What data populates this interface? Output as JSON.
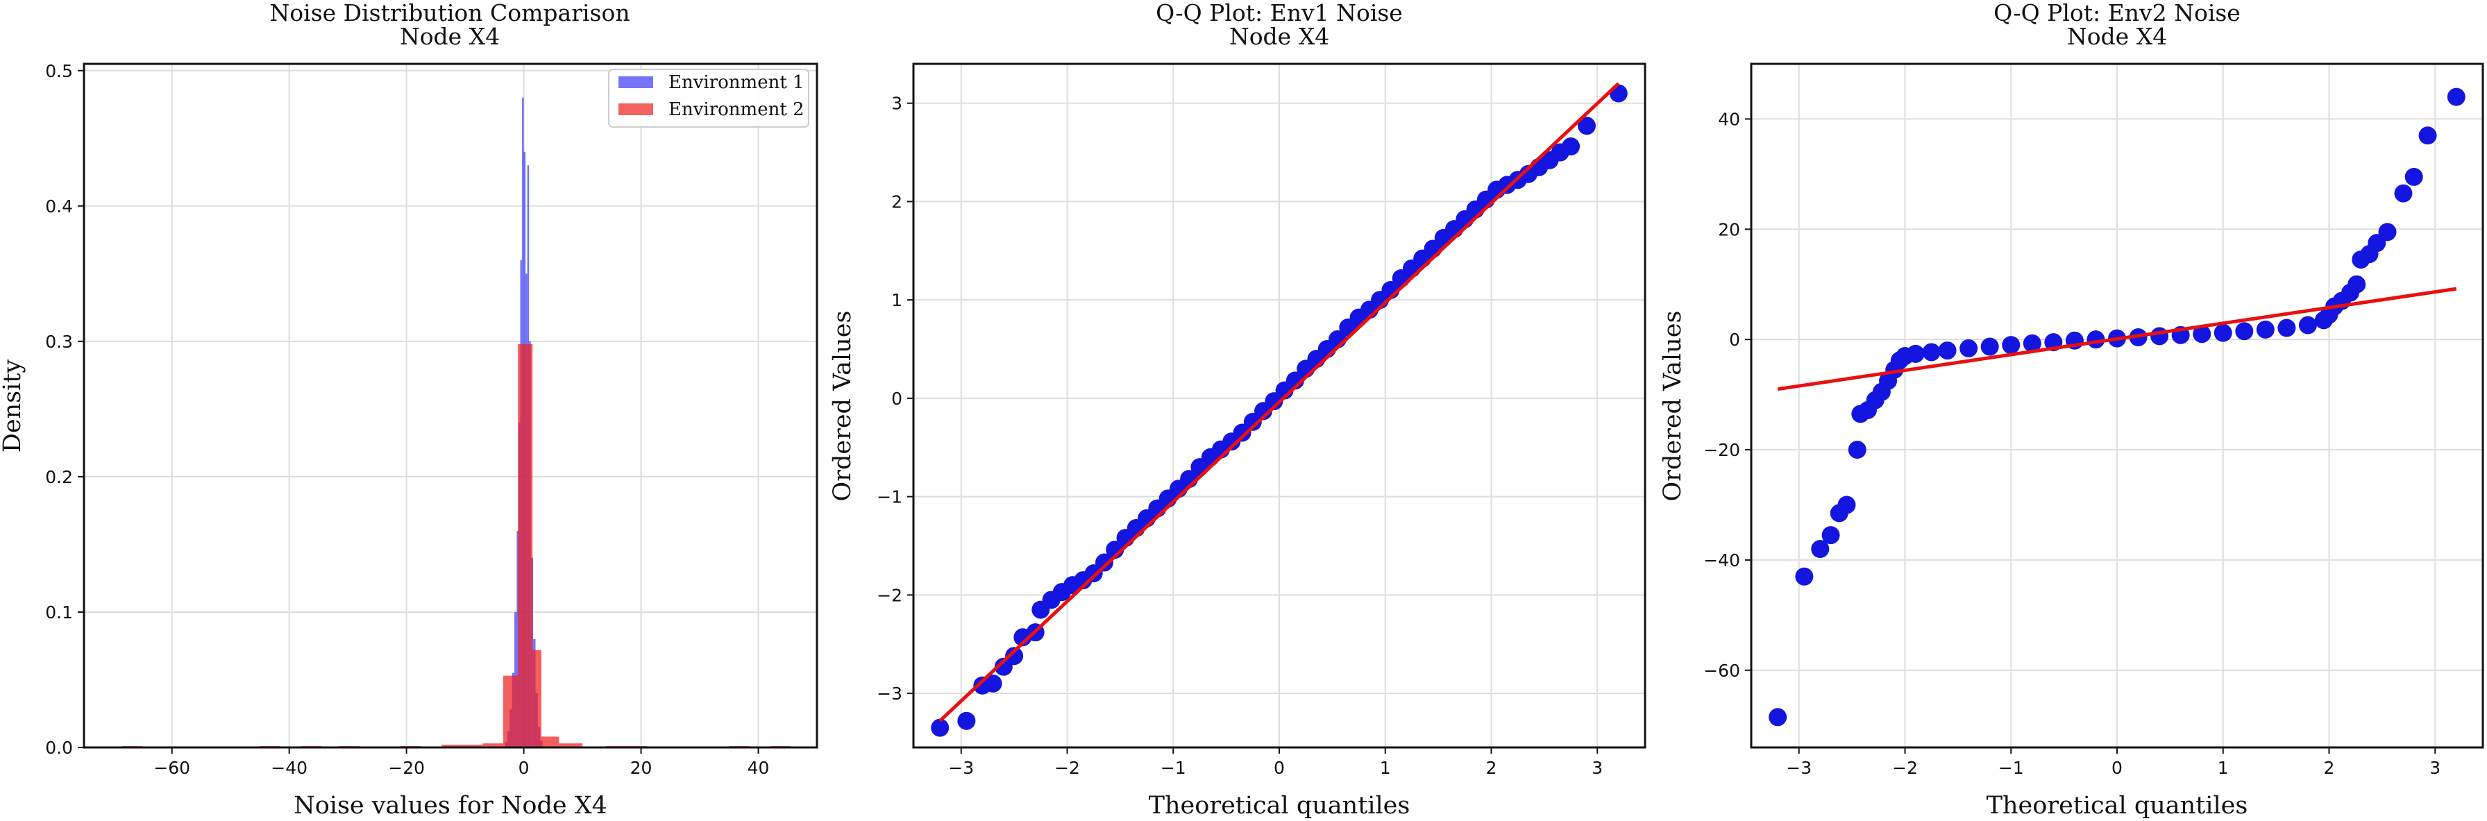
{
  "chart_data": [
    {
      "type": "histogram",
      "title": "Noise Distribution Comparison",
      "subtitle": "Node X4",
      "xlabel": "Noise values for Node X4",
      "ylabel": "Density",
      "xlim": [
        -75,
        50
      ],
      "ylim": [
        0,
        0.505
      ],
      "xticks": [
        -60,
        -40,
        -20,
        0,
        20,
        40
      ],
      "yticks": [
        0.0,
        0.1,
        0.2,
        0.3,
        0.4,
        0.5
      ],
      "xtick_labels": [
        "−60",
        "−40",
        "−20",
        "0",
        "20",
        "40"
      ],
      "ytick_labels": [
        "0.0",
        "0.1",
        "0.2",
        "0.3",
        "0.4",
        "0.5"
      ],
      "grid": true,
      "legend": "top-right",
      "series": [
        {
          "name": "Environment 1",
          "color": "#3b3bf5",
          "bins": [
            {
              "x0": -3.2,
              "x1": -2.8,
              "density": 0.004
            },
            {
              "x0": -2.8,
              "x1": -2.4,
              "density": 0.012
            },
            {
              "x0": -2.4,
              "x1": -2.0,
              "density": 0.028
            },
            {
              "x0": -2.0,
              "x1": -1.6,
              "density": 0.055
            },
            {
              "x0": -1.6,
              "x1": -1.2,
              "density": 0.1
            },
            {
              "x0": -1.2,
              "x1": -0.9,
              "density": 0.16
            },
            {
              "x0": -0.9,
              "x1": -0.6,
              "density": 0.24
            },
            {
              "x0": -0.6,
              "x1": -0.3,
              "density": 0.36
            },
            {
              "x0": -0.3,
              "x1": 0.0,
              "density": 0.48
            },
            {
              "x0": 0.0,
              "x1": 0.3,
              "density": 0.44
            },
            {
              "x0": 0.3,
              "x1": 0.6,
              "density": 0.35
            },
            {
              "x0": 0.6,
              "x1": 0.9,
              "density": 0.43
            },
            {
              "x0": 0.9,
              "x1": 1.2,
              "density": 0.3
            },
            {
              "x0": 1.2,
              "x1": 1.6,
              "density": 0.14
            },
            {
              "x0": 1.6,
              "x1": 2.0,
              "density": 0.08
            },
            {
              "x0": 2.0,
              "x1": 2.4,
              "density": 0.04
            },
            {
              "x0": 2.4,
              "x1": 2.8,
              "density": 0.015
            },
            {
              "x0": 2.8,
              "x1": 3.2,
              "density": 0.005
            }
          ]
        },
        {
          "name": "Environment 2",
          "color": "#f02020",
          "bins": [
            {
              "x0": -68.5,
              "x1": -65.0,
              "density": 0.001
            },
            {
              "x0": -45.0,
              "x1": -41.5,
              "density": 0.001
            },
            {
              "x0": -38.0,
              "x1": -34.5,
              "density": 0.001
            },
            {
              "x0": -31.5,
              "x1": -28.0,
              "density": 0.001
            },
            {
              "x0": -21.0,
              "x1": -17.5,
              "density": 0.001
            },
            {
              "x0": -14.0,
              "x1": -10.5,
              "density": 0.002
            },
            {
              "x0": -10.5,
              "x1": -7.0,
              "density": 0.002
            },
            {
              "x0": -7.0,
              "x1": -3.5,
              "density": 0.003
            },
            {
              "x0": -3.5,
              "x1": -1.0,
              "density": 0.053
            },
            {
              "x0": -1.0,
              "x1": 1.5,
              "density": 0.298
            },
            {
              "x0": 1.5,
              "x1": 3.0,
              "density": 0.072
            },
            {
              "x0": 3.0,
              "x1": 6.0,
              "density": 0.008
            },
            {
              "x0": 6.0,
              "x1": 10.0,
              "density": 0.003
            },
            {
              "x0": 14.0,
              "x1": 17.5,
              "density": 0.001
            },
            {
              "x0": 17.5,
              "x1": 21.0,
              "density": 0.001
            },
            {
              "x0": 35.0,
              "x1": 38.5,
              "density": 0.001
            },
            {
              "x0": 42.0,
              "x1": 45.5,
              "density": 0.001
            }
          ]
        }
      ]
    },
    {
      "type": "scatter",
      "title": "Q-Q Plot: Env1 Noise",
      "subtitle": "Node X4",
      "xlabel": "Theoretical quantiles",
      "ylabel": "Ordered Values",
      "xlim": [
        -3.45,
        3.45
      ],
      "ylim": [
        -3.55,
        3.4
      ],
      "xticks": [
        -3,
        -2,
        -1,
        0,
        1,
        2,
        3
      ],
      "yticks": [
        -3,
        -2,
        -1,
        0,
        1,
        2,
        3
      ],
      "xtick_labels": [
        "−3",
        "−2",
        "−1",
        "0",
        "1",
        "2",
        "3"
      ],
      "ytick_labels": [
        "−3",
        "−2",
        "−1",
        "0",
        "1",
        "2",
        "3"
      ],
      "grid": true,
      "fit_line": {
        "color": "#e81010",
        "points": [
          [
            -3.2,
            -3.28
          ],
          [
            3.2,
            3.2
          ]
        ]
      },
      "points_color": "#1515e0",
      "points": [
        [
          -3.2,
          -3.35
        ],
        [
          -2.95,
          -3.28
        ],
        [
          -2.8,
          -2.92
        ],
        [
          -2.7,
          -2.9
        ],
        [
          -2.6,
          -2.73
        ],
        [
          -2.5,
          -2.62
        ],
        [
          -2.42,
          -2.43
        ],
        [
          -2.3,
          -2.38
        ],
        [
          -2.25,
          -2.15
        ],
        [
          -2.15,
          -2.05
        ],
        [
          -2.05,
          -1.97
        ],
        [
          -1.95,
          -1.9
        ],
        [
          -1.85,
          -1.85
        ],
        [
          -1.75,
          -1.78
        ],
        [
          -1.65,
          -1.67
        ],
        [
          -1.55,
          -1.54
        ],
        [
          -1.45,
          -1.42
        ],
        [
          -1.35,
          -1.32
        ],
        [
          -1.25,
          -1.22
        ],
        [
          -1.15,
          -1.12
        ],
        [
          -1.05,
          -1.02
        ],
        [
          -0.95,
          -0.92
        ],
        [
          -0.85,
          -0.82
        ],
        [
          -0.75,
          -0.7
        ],
        [
          -0.65,
          -0.6
        ],
        [
          -0.55,
          -0.52
        ],
        [
          -0.45,
          -0.44
        ],
        [
          -0.35,
          -0.35
        ],
        [
          -0.25,
          -0.24
        ],
        [
          -0.15,
          -0.13
        ],
        [
          -0.05,
          -0.03
        ],
        [
          0.05,
          0.08
        ],
        [
          0.15,
          0.18
        ],
        [
          0.25,
          0.3
        ],
        [
          0.35,
          0.4
        ],
        [
          0.45,
          0.5
        ],
        [
          0.55,
          0.6
        ],
        [
          0.65,
          0.72
        ],
        [
          0.75,
          0.82
        ],
        [
          0.85,
          0.9
        ],
        [
          0.95,
          1.0
        ],
        [
          1.05,
          1.1
        ],
        [
          1.15,
          1.22
        ],
        [
          1.25,
          1.32
        ],
        [
          1.35,
          1.42
        ],
        [
          1.45,
          1.52
        ],
        [
          1.55,
          1.63
        ],
        [
          1.65,
          1.72
        ],
        [
          1.75,
          1.82
        ],
        [
          1.85,
          1.92
        ],
        [
          1.95,
          2.02
        ],
        [
          2.05,
          2.12
        ],
        [
          2.15,
          2.17
        ],
        [
          2.25,
          2.22
        ],
        [
          2.35,
          2.28
        ],
        [
          2.45,
          2.35
        ],
        [
          2.55,
          2.42
        ],
        [
          2.65,
          2.5
        ],
        [
          2.75,
          2.56
        ],
        [
          2.9,
          2.77
        ],
        [
          3.2,
          3.1
        ]
      ]
    },
    {
      "type": "scatter",
      "title": "Q-Q Plot: Env2 Noise",
      "subtitle": "Node X4",
      "xlabel": "Theoretical quantiles",
      "ylabel": "Ordered Values",
      "xlim": [
        -3.45,
        3.45
      ],
      "ylim": [
        -74,
        50
      ],
      "xticks": [
        -3,
        -2,
        -1,
        0,
        1,
        2,
        3
      ],
      "yticks": [
        -60,
        -40,
        -20,
        0,
        20,
        40
      ],
      "xtick_labels": [
        "−3",
        "−2",
        "−1",
        "0",
        "1",
        "2",
        "3"
      ],
      "ytick_labels": [
        "−60",
        "−40",
        "−20",
        "0",
        "20",
        "40"
      ],
      "grid": true,
      "fit_line": {
        "color": "#e81010",
        "points": [
          [
            -3.2,
            -9.0
          ],
          [
            3.2,
            9.2
          ]
        ]
      },
      "points_color": "#1515e0",
      "points": [
        [
          -3.2,
          -68.5
        ],
        [
          -2.95,
          -43.0
        ],
        [
          -2.8,
          -38.0
        ],
        [
          -2.7,
          -35.5
        ],
        [
          -2.62,
          -31.5
        ],
        [
          -2.55,
          -30.0
        ],
        [
          -2.45,
          -20.0
        ],
        [
          -2.42,
          -13.5
        ],
        [
          -2.35,
          -12.8
        ],
        [
          -2.28,
          -11.0
        ],
        [
          -2.22,
          -9.5
        ],
        [
          -2.16,
          -7.5
        ],
        [
          -2.1,
          -5.5
        ],
        [
          -2.05,
          -3.8
        ],
        [
          -2.0,
          -3.0
        ],
        [
          -1.9,
          -2.6
        ],
        [
          -1.75,
          -2.3
        ],
        [
          -1.6,
          -2.0
        ],
        [
          -1.4,
          -1.6
        ],
        [
          -1.2,
          -1.3
        ],
        [
          -1.0,
          -1.0
        ],
        [
          -0.8,
          -0.7
        ],
        [
          -0.6,
          -0.5
        ],
        [
          -0.4,
          -0.2
        ],
        [
          -0.2,
          0.0
        ],
        [
          0.0,
          0.2
        ],
        [
          0.2,
          0.4
        ],
        [
          0.4,
          0.6
        ],
        [
          0.6,
          0.8
        ],
        [
          0.8,
          1.0
        ],
        [
          1.0,
          1.2
        ],
        [
          1.2,
          1.5
        ],
        [
          1.4,
          1.8
        ],
        [
          1.6,
          2.1
        ],
        [
          1.8,
          2.6
        ],
        [
          1.95,
          3.5
        ],
        [
          2.0,
          4.5
        ],
        [
          2.05,
          6.0
        ],
        [
          2.12,
          7.0
        ],
        [
          2.2,
          8.5
        ],
        [
          2.26,
          10.0
        ],
        [
          2.3,
          14.5
        ],
        [
          2.38,
          15.5
        ],
        [
          2.45,
          17.5
        ],
        [
          2.55,
          19.5
        ],
        [
          2.7,
          26.5
        ],
        [
          2.8,
          29.5
        ],
        [
          2.93,
          37.0
        ],
        [
          3.2,
          44.0
        ]
      ]
    }
  ]
}
